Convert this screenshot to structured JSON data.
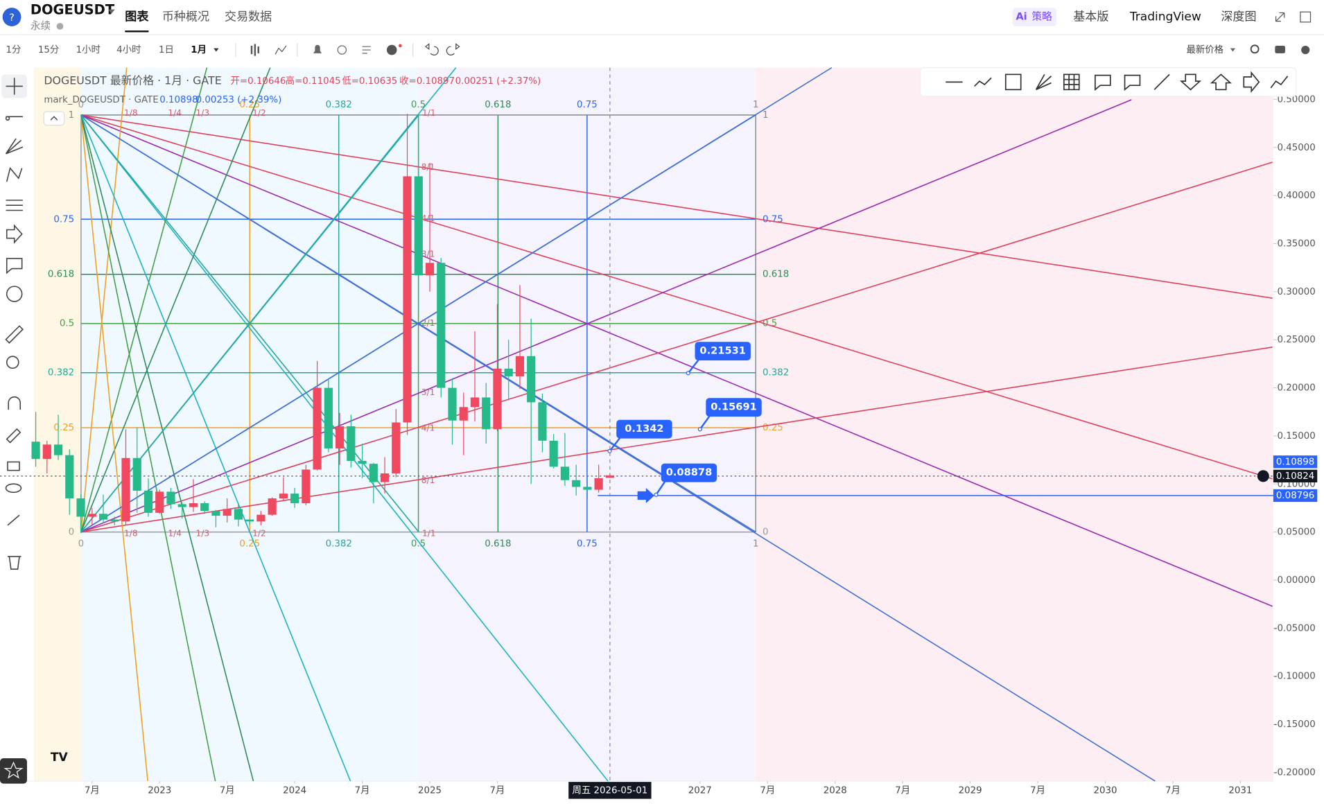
{
  "header": {
    "symbol": "DOGEUSDT",
    "contract": "永续",
    "tabs": [
      "图表",
      "币种概况",
      "交易数据"
    ],
    "ai_badge": "Ai",
    "right_tabs": [
      "策略",
      "基本版",
      "TradingView",
      "深度图"
    ]
  },
  "toolbar": {
    "intervals": [
      "1分",
      "15分",
      "1小时",
      "4小时",
      "1日",
      "1月"
    ],
    "price_source": "最新价格"
  },
  "legend": {
    "main": "DOGEUSDT 最新价格 · 1月 · GATE",
    "ohlc": [
      "开=0.10646",
      "高=0.11045",
      "低=0.10635",
      "收=0.10897"
    ],
    "change": "0.00251 (+2.37%)",
    "mark": "mark_DOGEUSDT · GATE",
    "mark_price": "0.10898",
    "mark_change": "0.00253 (+2.39%)"
  },
  "chart_data": {
    "type": "candlestick",
    "x": [
      "2022-02",
      "2022-03",
      "2022-04",
      "2022-05",
      "2022-06",
      "2022-07",
      "2022-08",
      "2022-09",
      "2022-10",
      "2022-11",
      "2022-12",
      "2023-01",
      "2023-02",
      "2023-03",
      "2023-04",
      "2023-05",
      "2023-06",
      "2023-07",
      "2023-08",
      "2023-09",
      "2023-10",
      "2023-11",
      "2023-12",
      "2024-01",
      "2024-02",
      "2024-03",
      "2024-04",
      "2024-05",
      "2024-06",
      "2024-07",
      "2024-08",
      "2024-09",
      "2024-10",
      "2024-11",
      "2024-12",
      "2025-01",
      "2025-02",
      "2025-03",
      "2025-04",
      "2025-05",
      "2025-06",
      "2025-07",
      "2025-08",
      "2025-09",
      "2025-10",
      "2025-11",
      "2025-12",
      "2026-01",
      "2026-02",
      "2026-03",
      "2026-04",
      "2026-05"
    ],
    "open": [
      0.144,
      0.126,
      0.141,
      0.13,
      0.085,
      0.066,
      0.069,
      0.063,
      0.061,
      0.127,
      0.093,
      0.07,
      0.092,
      0.079,
      0.076,
      0.08,
      0.072,
      0.067,
      0.074,
      0.063,
      0.061,
      0.068,
      0.085,
      0.09,
      0.08,
      0.115,
      0.2,
      0.137,
      0.16,
      0.124,
      0.121,
      0.102,
      0.111,
      0.164,
      0.42,
      0.317,
      0.33,
      0.2,
      0.166,
      0.18,
      0.19,
      0.157,
      0.22,
      0.212,
      0.233,
      0.185,
      0.145,
      0.118,
      0.104,
      0.097,
      0.094,
      0.10646
    ],
    "high": [
      0.175,
      0.145,
      0.172,
      0.136,
      0.089,
      0.075,
      0.089,
      0.066,
      0.157,
      0.159,
      0.106,
      0.094,
      0.096,
      0.081,
      0.105,
      0.082,
      0.073,
      0.085,
      0.08,
      0.064,
      0.072,
      0.086,
      0.107,
      0.096,
      0.12,
      0.228,
      0.21,
      0.174,
      0.172,
      0.142,
      0.122,
      0.128,
      0.178,
      0.485,
      0.485,
      0.434,
      0.335,
      0.21,
      0.195,
      0.259,
      0.205,
      0.287,
      0.25,
      0.307,
      0.272,
      0.194,
      0.152,
      0.153,
      0.12,
      0.107,
      0.12,
      0.11045
    ],
    "low": [
      0.118,
      0.111,
      0.125,
      0.068,
      0.049,
      0.058,
      0.059,
      0.057,
      0.057,
      0.07,
      0.066,
      0.069,
      0.074,
      0.064,
      0.071,
      0.069,
      0.055,
      0.06,
      0.056,
      0.057,
      0.057,
      0.067,
      0.083,
      0.075,
      0.078,
      0.114,
      0.133,
      0.12,
      0.117,
      0.106,
      0.08,
      0.09,
      0.107,
      0.151,
      0.275,
      0.3,
      0.19,
      0.141,
      0.13,
      0.165,
      0.142,
      0.155,
      0.187,
      0.199,
      0.1,
      0.133,
      0.116,
      0.098,
      0.088,
      0.085,
      0.091,
      0.10635
    ],
    "close": [
      0.126,
      0.141,
      0.13,
      0.085,
      0.066,
      0.069,
      0.063,
      0.061,
      0.127,
      0.093,
      0.07,
      0.092,
      0.079,
      0.076,
      0.08,
      0.072,
      0.067,
      0.074,
      0.063,
      0.061,
      0.068,
      0.085,
      0.09,
      0.08,
      0.115,
      0.2,
      0.137,
      0.16,
      0.124,
      0.121,
      0.102,
      0.111,
      0.164,
      0.42,
      0.317,
      0.33,
      0.2,
      0.166,
      0.18,
      0.19,
      0.157,
      0.22,
      0.212,
      0.233,
      0.185,
      0.145,
      0.118,
      0.104,
      0.097,
      0.094,
      0.106,
      0.10897
    ],
    "up_color": "#f0485e",
    "down_color": "#26b98a",
    "ylim": [
      -0.209,
      0.533
    ],
    "yticks": [
      {
        "value": 0.5,
        "label": "0.50000"
      },
      {
        "value": 0.45,
        "label": "0.45000"
      },
      {
        "value": 0.4,
        "label": "0.40000"
      },
      {
        "value": 0.35,
        "label": "0.35000"
      },
      {
        "value": 0.3,
        "label": "0.30000"
      },
      {
        "value": 0.25,
        "label": "0.25000"
      },
      {
        "value": 0.2,
        "label": "0.20000"
      },
      {
        "value": 0.15,
        "label": "0.15000"
      },
      {
        "value": 0.1,
        "label": "0.10000"
      },
      {
        "value": 0.05,
        "label": "0.05000"
      },
      {
        "value": 0,
        "label": "0.00000"
      },
      {
        "value": -0.05,
        "label": "-0.05000"
      },
      {
        "value": -0.1,
        "label": "-0.10000"
      },
      {
        "value": -0.15,
        "label": "-0.15000"
      },
      {
        "value": -0.2,
        "label": "-0.20000"
      }
    ],
    "xticks": [
      {
        "value": "2022-07",
        "label": "7月"
      },
      {
        "value": "2023-01",
        "label": "2023"
      },
      {
        "value": "2023-07",
        "label": "7月"
      },
      {
        "value": "2024-01",
        "label": "2024"
      },
      {
        "value": "2024-07",
        "label": "7月"
      },
      {
        "value": "2025-01",
        "label": "2025"
      },
      {
        "value": "2025-07",
        "label": "7月"
      },
      {
        "value": "2027-01",
        "label": "2027"
      },
      {
        "value": "2027-07",
        "label": "7月"
      },
      {
        "value": "2028-01",
        "label": "2028"
      },
      {
        "value": "2028-07",
        "label": "7月"
      },
      {
        "value": "2029-01",
        "label": "2029"
      },
      {
        "value": "2029-07",
        "label": "7月"
      },
      {
        "value": "2030-01",
        "label": "2030"
      },
      {
        "value": "2030-07",
        "label": "7月"
      },
      {
        "value": "2031-01",
        "label": "2031"
      }
    ],
    "price_labels": [
      {
        "value": 0.10898,
        "color": "#2962ff"
      },
      {
        "value": 0.10824,
        "color": "#131722"
      },
      {
        "value": 0.08796,
        "color": "#2962ff"
      }
    ],
    "callouts": [
      0.21531,
      0.15691,
      0.1342,
      0.08878
    ],
    "gann_box": {
      "levels": [
        0,
        0.25,
        0.382,
        0.5,
        0.618,
        0.75,
        1
      ]
    },
    "fan_labels": [
      "1/8",
      "1/4",
      "1/3",
      "1/2",
      "1/1",
      "2/1",
      "3/1",
      "4/1",
      "8/1"
    ],
    "crosshair_label": "周五 2026-05-01"
  }
}
